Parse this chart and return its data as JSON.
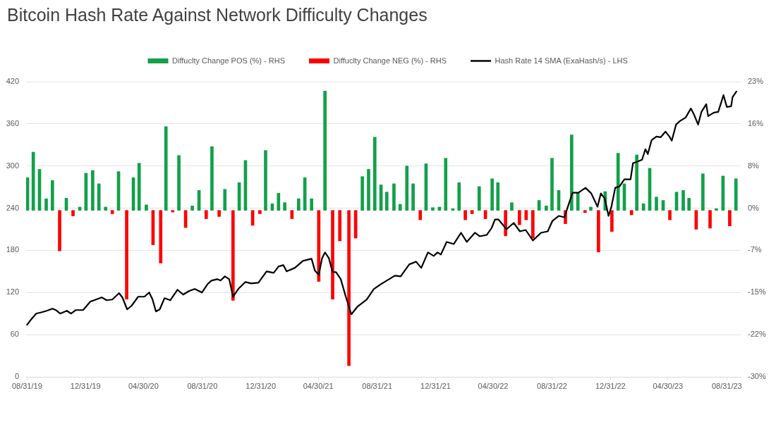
{
  "chart_data": {
    "type": "bar",
    "title": "Bitcoin Hash Rate Against Network Difficulty Changes",
    "series": [
      {
        "name": "Diffuclty Change POS (%) - RHS",
        "axis": "y2",
        "color": "#12a04a",
        "x": [
          "2019-09-01",
          "2019-09-13",
          "2019-09-26",
          "2019-10-10",
          "2019-10-23",
          "2019-11-21",
          "2019-12-19",
          "2020-01-01",
          "2020-01-15",
          "2020-01-28",
          "2020-02-11",
          "2020-03-09",
          "2020-04-09",
          "2020-04-21",
          "2020-05-06",
          "2020-06-16",
          "2020-07-13",
          "2020-08-10",
          "2020-08-24",
          "2020-09-20",
          "2020-10-17",
          "2020-11-16",
          "2020-11-29",
          "2021-01-10",
          "2021-01-24",
          "2021-02-06",
          "2021-02-19",
          "2021-03-20",
          "2021-04-02",
          "2021-04-16",
          "2021-05-14",
          "2021-07-31",
          "2021-08-13",
          "2021-08-26",
          "2021-09-08",
          "2021-09-20",
          "2021-10-05",
          "2021-10-18",
          "2021-11-01",
          "2021-11-14",
          "2021-12-11",
          "2021-12-25",
          "2022-01-08",
          "2022-01-21",
          "2022-02-05",
          "2022-02-18",
          "2022-04-01",
          "2022-04-28",
          "2022-05-10",
          "2022-06-08",
          "2022-08-04",
          "2022-08-19",
          "2022-08-31",
          "2022-09-14",
          "2022-10-11",
          "2022-10-24",
          "2022-11-20",
          "2022-12-20",
          "2023-01-16",
          "2023-01-29",
          "2023-02-24",
          "2023-03-10",
          "2023-03-23",
          "2023-04-06",
          "2023-04-20",
          "2023-05-18",
          "2023-06-01",
          "2023-06-13",
          "2023-07-12",
          "2023-08-09",
          "2023-08-23",
          "2023-09-19"
        ],
        "values": [
          5.9,
          10.5,
          7.4,
          2.1,
          5.4,
          2.2,
          0.6,
          6.7,
          7.2,
          4.8,
          0.6,
          7.0,
          5.9,
          8.5,
          1.0,
          15.1,
          9.9,
          0.8,
          3.6,
          11.5,
          3.8,
          5.0,
          9.0,
          10.8,
          1.2,
          3.1,
          1.4,
          2.1,
          5.9,
          2.1,
          21.5,
          6.1,
          7.4,
          13.2,
          4.6,
          3.3,
          4.8,
          1.1,
          8.0,
          4.8,
          8.4,
          0.5,
          0.6,
          9.4,
          0.3,
          5.0,
          4.3,
          5.7,
          5.0,
          1.4,
          1.8,
          0.8,
          9.4,
          3.6,
          13.6,
          3.1,
          0.6,
          3.4,
          10.3,
          4.8,
          10.0,
          1.2,
          7.6,
          2.4,
          1.8,
          3.3,
          3.6,
          2.2,
          6.6,
          0.3,
          6.2,
          5.7
        ]
      },
      {
        "name": "Diffuclty Change NEG (%) - RHS",
        "axis": "y2",
        "color": "#ff0000",
        "x": [
          "2019-11-07",
          "2019-12-05",
          "2020-02-25",
          "2020-03-26",
          "2020-05-20",
          "2020-06-05",
          "2020-06-30",
          "2020-07-27",
          "2020-09-08",
          "2020-10-05",
          "2020-11-03",
          "2020-12-14",
          "2020-12-29",
          "2021-03-06",
          "2021-05-01",
          "2021-05-30",
          "2021-06-14",
          "2021-07-03",
          "2021-07-17",
          "2021-11-29",
          "2022-03-03",
          "2022-03-17",
          "2022-04-14",
          "2022-05-26",
          "2022-06-24",
          "2022-07-08",
          "2022-07-22",
          "2022-09-28",
          "2022-11-08",
          "2022-12-06",
          "2023-01-03",
          "2023-02-13",
          "2023-05-04",
          "2023-06-28",
          "2023-07-27",
          "2023-09-06"
        ],
        "values": [
          -7.3,
          -1.0,
          -0.6,
          -16.0,
          -6.2,
          -9.5,
          -0.3,
          -3.1,
          -1.5,
          -1.1,
          -16.2,
          -2.7,
          -0.6,
          -1.5,
          -12.8,
          -16.0,
          -5.5,
          -28.0,
          -5.0,
          -1.7,
          -1.7,
          -0.6,
          -1.5,
          -4.6,
          -2.6,
          -1.7,
          -5.0,
          -2.4,
          -0.4,
          -7.5,
          -3.8,
          -0.8,
          -1.7,
          -3.4,
          -3.2,
          -2.8
        ]
      },
      {
        "name": "Hash Rate 14 SMA (ExaHash/s) - LHS",
        "type": "line",
        "color": "#000000",
        "x": [
          "2019-08-31",
          "2019-09-09",
          "2019-09-19",
          "2019-10-01",
          "2019-10-11",
          "2019-10-23",
          "2019-10-30",
          "2019-11-08",
          "2019-11-22",
          "2019-12-01",
          "2019-12-11",
          "2019-12-26",
          "2020-01-10",
          "2020-01-22",
          "2020-02-03",
          "2020-02-13",
          "2020-02-25",
          "2020-03-10",
          "2020-03-17",
          "2020-03-27",
          "2020-04-05",
          "2020-04-19",
          "2020-05-02",
          "2020-05-12",
          "2020-05-19",
          "2020-05-26",
          "2020-06-03",
          "2020-06-13",
          "2020-06-25",
          "2020-07-10",
          "2020-07-22",
          "2020-08-03",
          "2020-08-15",
          "2020-08-30",
          "2020-09-11",
          "2020-09-19",
          "2020-10-01",
          "2020-10-08",
          "2020-10-17",
          "2020-10-26",
          "2020-11-03",
          "2020-11-14",
          "2020-11-29",
          "2020-12-11",
          "2020-12-26",
          "2021-01-12",
          "2021-01-27",
          "2021-02-06",
          "2021-02-16",
          "2021-02-23",
          "2021-03-12",
          "2021-03-29",
          "2021-04-16",
          "2021-04-23",
          "2021-05-01",
          "2021-05-08",
          "2021-05-14",
          "2021-05-22",
          "2021-05-30",
          "2021-06-06",
          "2021-06-16",
          "2021-06-26",
          "2021-07-08",
          "2021-07-21",
          "2021-08-09",
          "2021-08-24",
          "2021-09-08",
          "2021-09-20",
          "2021-10-07",
          "2021-10-19",
          "2021-11-06",
          "2021-11-20",
          "2021-12-01",
          "2021-12-15",
          "2021-12-27",
          "2022-01-04",
          "2022-01-11",
          "2022-01-23",
          "2022-02-07",
          "2022-02-22",
          "2022-03-06",
          "2022-03-23",
          "2022-04-02",
          "2022-04-17",
          "2022-04-27",
          "2022-05-04",
          "2022-05-11",
          "2022-05-28",
          "2022-06-12",
          "2022-06-25",
          "2022-07-07",
          "2022-07-22",
          "2022-08-08",
          "2022-08-22",
          "2022-09-01",
          "2022-09-14",
          "2022-09-26",
          "2022-10-03",
          "2022-10-13",
          "2022-10-25",
          "2022-11-09",
          "2022-11-21",
          "2022-12-04",
          "2022-12-11",
          "2022-12-19",
          "2022-12-27",
          "2023-01-02",
          "2023-01-10",
          "2023-01-19",
          "2023-01-29",
          "2023-02-11",
          "2023-02-16",
          "2023-02-28",
          "2023-03-07",
          "2023-03-14",
          "2023-03-19",
          "2023-03-27",
          "2023-04-06",
          "2023-04-15",
          "2023-04-25",
          "2023-05-03",
          "2023-05-08",
          "2023-05-17",
          "2023-05-25",
          "2023-06-06",
          "2023-06-17",
          "2023-06-23",
          "2023-07-02",
          "2023-07-09",
          "2023-07-19",
          "2023-07-23",
          "2023-08-04",
          "2023-08-13",
          "2023-08-24",
          "2023-08-31",
          "2023-09-09",
          "2023-09-12",
          "2023-09-20"
        ],
        "values": [
          74,
          82,
          90,
          92,
          94,
          97,
          95,
          90,
          94,
          90,
          95,
          95,
          107,
          110,
          113,
          109,
          110,
          119,
          113,
          96,
          101,
          114,
          114,
          120,
          110,
          93,
          96,
          112,
          109,
          124,
          117,
          122,
          125,
          120,
          132,
          137,
          139,
          137,
          143,
          139,
          114,
          125,
          135,
          133,
          134,
          150,
          148,
          157,
          159,
          150,
          155,
          165,
          168,
          151,
          145,
          169,
          177,
          169,
          149,
          149,
          139,
          115,
          89,
          100,
          110,
          125,
          132,
          137,
          144,
          143,
          160,
          164,
          155,
          177,
          172,
          177,
          174,
          192,
          189,
          205,
          192,
          205,
          200,
          202,
          212,
          224,
          224,
          210,
          219,
          207,
          209,
          194,
          205,
          207,
          222,
          229,
          227,
          242,
          262,
          262,
          269,
          261,
          242,
          261,
          254,
          229,
          242,
          269,
          271,
          281,
          281,
          304,
          307,
          309,
          324,
          317,
          337,
          342,
          341,
          349,
          342,
          336,
          359,
          364,
          369,
          382,
          374,
          359,
          377,
          388,
          371,
          376,
          377,
          401,
          384,
          385,
          398,
          406
        ]
      }
    ],
    "xlim": [
      "2019-08-29",
      "2023-09-29"
    ],
    "xticks": [
      {
        "value": "2019-08-31",
        "label": "08/31/19"
      },
      {
        "value": "2019-12-31",
        "label": "12/31/19"
      },
      {
        "value": "2020-04-30",
        "label": "04/30/20"
      },
      {
        "value": "2020-08-31",
        "label": "08/31/20"
      },
      {
        "value": "2020-12-31",
        "label": "12/31/20"
      },
      {
        "value": "2021-04-30",
        "label": "04/30/21"
      },
      {
        "value": "2021-08-31",
        "label": "08/31/21"
      },
      {
        "value": "2021-12-31",
        "label": "12/31/21"
      },
      {
        "value": "2022-04-30",
        "label": "04/30/22"
      },
      {
        "value": "2022-08-31",
        "label": "08/31/22"
      },
      {
        "value": "2022-12-31",
        "label": "12/31/22"
      },
      {
        "value": "2023-04-30",
        "label": "04/30/23"
      },
      {
        "value": "2023-08-31",
        "label": "08/31/23"
      }
    ],
    "ylim": [
      0,
      420
    ],
    "yticks": [
      0,
      60,
      120,
      180,
      240,
      300,
      360,
      420
    ],
    "y2lim": [
      -30,
      23.2
    ],
    "y2ticks": [
      {
        "value": -30,
        "label": "-30%"
      },
      {
        "value": -22.4,
        "label": "-22%"
      },
      {
        "value": -14.8,
        "label": "-15%"
      },
      {
        "value": -7.2,
        "label": "-7%"
      },
      {
        "value": 0.4,
        "label": "0%"
      },
      {
        "value": 8,
        "label": "8%"
      },
      {
        "value": 15.6,
        "label": "16%"
      },
      {
        "value": 23.2,
        "label": "23%"
      }
    ],
    "grid": "y",
    "legend": "top"
  }
}
